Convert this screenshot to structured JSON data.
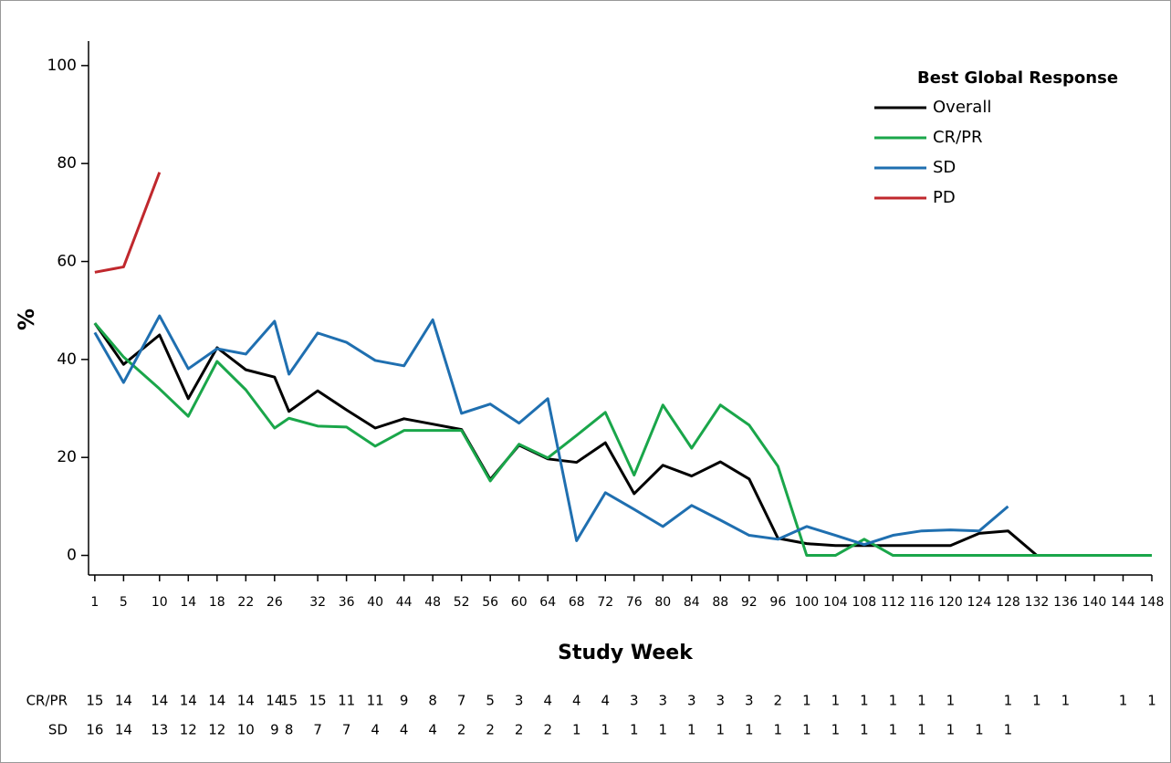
{
  "chart_data": {
    "type": "line",
    "y_label": "%",
    "x_label": "Study Week",
    "legend_title": "Best Global Response",
    "legend_position": "upper right",
    "x": [
      1,
      5,
      10,
      14,
      18,
      22,
      26,
      28,
      32,
      36,
      40,
      44,
      48,
      52,
      56,
      60,
      64,
      68,
      72,
      76,
      80,
      84,
      88,
      92,
      96,
      100,
      104,
      108,
      112,
      116,
      120,
      124,
      128,
      132,
      136,
      140,
      144,
      148
    ],
    "xlim": [
      0,
      148
    ],
    "xticks": [
      1,
      5,
      10,
      14,
      18,
      22,
      26,
      32,
      36,
      40,
      44,
      48,
      52,
      56,
      60,
      64,
      68,
      72,
      76,
      80,
      84,
      88,
      92,
      96,
      100,
      104,
      108,
      112,
      116,
      120,
      124,
      128,
      132,
      136,
      140,
      144,
      148
    ],
    "ylim": [
      -4,
      105
    ],
    "yticks": [
      0,
      20,
      40,
      60,
      80,
      100
    ],
    "series": [
      {
        "name": "Overall",
        "color": "#000000",
        "values": [
          47.4,
          39,
          45,
          32,
          42.4,
          37.9,
          36.4,
          29.4,
          33.6,
          29.7,
          26,
          27.9,
          26.8,
          25.7,
          15.5,
          22.5,
          19.7,
          19,
          23,
          12.6,
          18.4,
          16.2,
          19.1,
          15.6,
          3.5,
          2.4,
          2,
          2,
          2,
          2,
          2,
          4.5,
          5,
          0,
          0,
          0,
          0,
          0
        ]
      },
      {
        "name": "CR/PR",
        "color": "#1aa64a",
        "values": [
          47.4,
          40.5,
          34,
          28.4,
          39.6,
          33.8,
          26,
          28,
          26.4,
          26.2,
          22.3,
          25.5,
          25.5,
          25.5,
          15.2,
          22.7,
          19.9,
          24.5,
          29.2,
          16.4,
          30.7,
          21.9,
          30.7,
          26.6,
          18.2,
          0,
          0,
          3.3,
          0,
          0,
          0,
          0,
          0,
          0,
          0,
          0,
          0,
          0
        ]
      },
      {
        "name": "SD",
        "color": "#1f6fb0",
        "values": [
          45.5,
          35.3,
          48.9,
          38.1,
          42.2,
          41.1,
          47.8,
          37,
          45.4,
          43.5,
          39.8,
          38.7,
          48.1,
          29,
          30.9,
          27,
          32,
          3,
          12.8,
          9.4,
          5.9,
          10.2,
          7.2,
          4.1,
          3.3,
          5.9,
          4.1,
          2.2,
          4.1,
          5,
          5.2,
          5,
          10,
          null,
          null,
          null,
          null,
          null
        ]
      },
      {
        "name": "PD",
        "color": "#c0282d",
        "values": [
          57.8,
          58.9,
          78.2,
          null,
          null,
          null,
          null,
          null,
          null,
          null,
          null,
          null,
          null,
          null,
          null,
          null,
          null,
          null,
          null,
          null,
          null,
          null,
          null,
          null,
          null,
          null,
          null,
          null,
          null,
          null,
          null,
          null,
          null,
          null,
          null,
          null,
          null,
          null
        ]
      }
    ],
    "table": {
      "rows": [
        {
          "label": "CR/PR",
          "values": [
            15,
            14,
            14,
            14,
            14,
            14,
            14,
            15,
            15,
            11,
            11,
            9,
            8,
            7,
            5,
            3,
            4,
            4,
            4,
            3,
            3,
            3,
            3,
            3,
            2,
            1,
            1,
            1,
            1,
            1,
            1,
            null,
            1,
            1,
            1,
            null,
            1,
            1
          ]
        },
        {
          "label": "SD",
          "values": [
            16,
            14,
            13,
            12,
            12,
            10,
            9,
            8,
            7,
            7,
            4,
            4,
            4,
            2,
            2,
            2,
            2,
            1,
            1,
            1,
            1,
            1,
            1,
            1,
            1,
            1,
            1,
            1,
            1,
            1,
            1,
            1,
            1,
            null,
            null,
            null,
            null,
            null
          ]
        }
      ]
    }
  }
}
